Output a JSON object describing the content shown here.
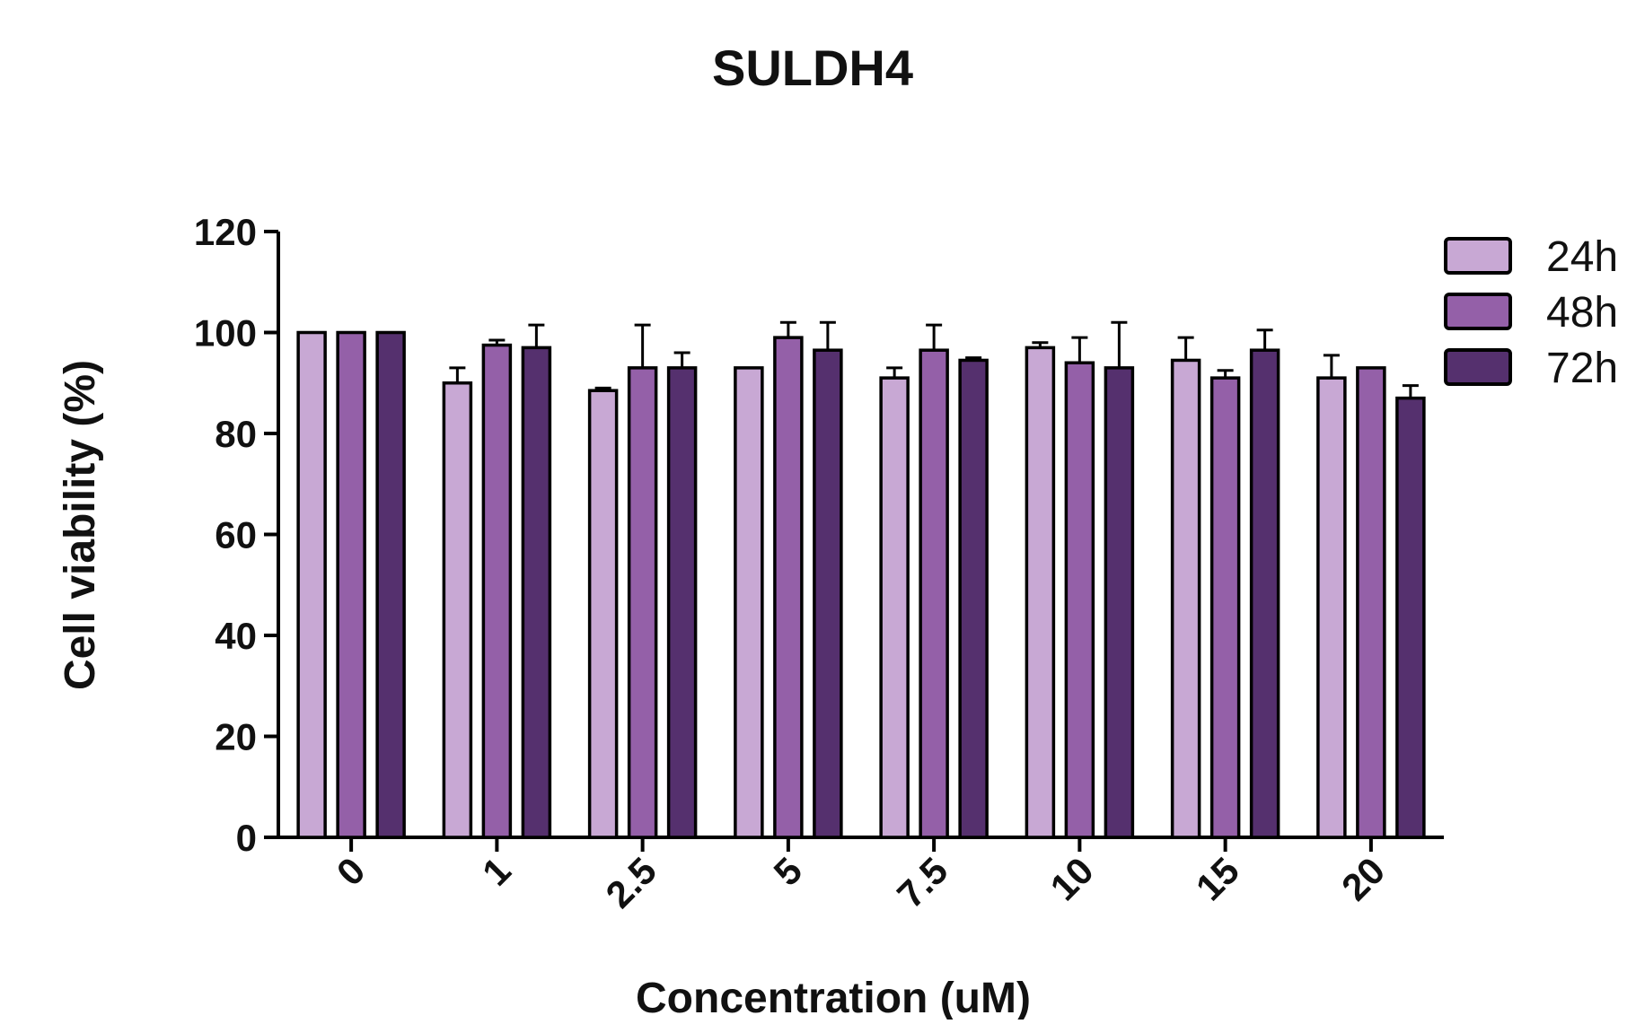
{
  "chart_data": {
    "type": "bar",
    "title": "SULDH4",
    "xlabel": "Concentration (uM)",
    "ylabel": "Cell viability (%)",
    "ylim": [
      0,
      120
    ],
    "yticks": [
      "0",
      "20",
      "40",
      "60",
      "80",
      "100",
      "120"
    ],
    "categories": [
      "0",
      "1",
      "2.5",
      "5",
      "7.5",
      "10",
      "15",
      "20"
    ],
    "legend_position": "right",
    "grid": false,
    "series": [
      {
        "name": "24h",
        "color": "#c8a8d4",
        "values": [
          100,
          90,
          88.5,
          93,
          91,
          97,
          94.5,
          91
        ],
        "errors": [
          0,
          3,
          0.5,
          0,
          2,
          1,
          4.5,
          4.5
        ]
      },
      {
        "name": "48h",
        "color": "#9460a8",
        "values": [
          100,
          97.5,
          93,
          99,
          96.5,
          94,
          91,
          93
        ],
        "errors": [
          0,
          1,
          8.5,
          3,
          5,
          5,
          1.5,
          0
        ]
      },
      {
        "name": "72h",
        "color": "#55306e",
        "values": [
          100,
          97,
          93,
          96.5,
          94.5,
          93,
          96.5,
          87
        ],
        "errors": [
          0,
          4.5,
          3,
          5.5,
          0.5,
          9,
          4,
          2.5
        ]
      }
    ]
  }
}
